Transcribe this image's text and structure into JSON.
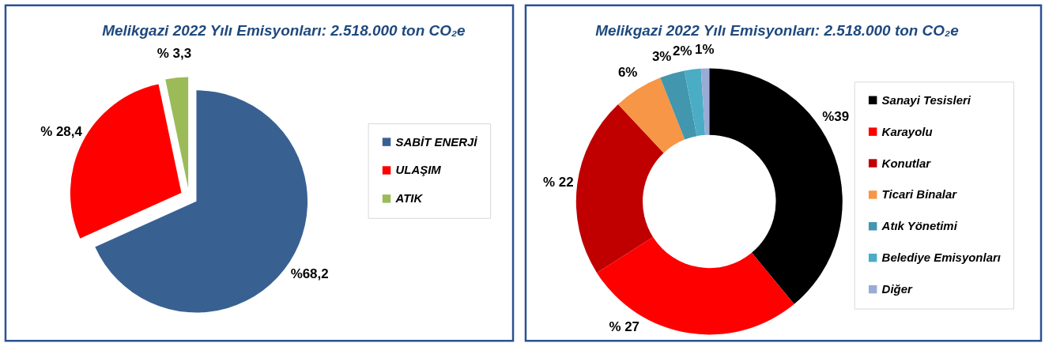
{
  "chart_data": [
    {
      "type": "pie",
      "title": "Melikgazi 2022 Yılı Emisyonları: 2.518.000 ton CO₂e",
      "categories": [
        "SABİT ENERJİ",
        "ULAŞIM",
        "ATIK"
      ],
      "values": [
        68.2,
        28.4,
        3.3
      ],
      "colors": [
        "#386192",
        "#ff0000",
        "#9bbb59"
      ],
      "value_labels": [
        "%68,2",
        "% 28,4",
        "% 3,3"
      ],
      "legend": "right"
    },
    {
      "type": "donut",
      "title": "Melikgazi 2022 Yılı Emisyonları: 2.518.000 ton CO₂e",
      "categories": [
        "Sanayi Tesisleri",
        "Karayolu",
        "Konutlar",
        "Ticari Binalar",
        "Atık Yönetimi",
        "Belediye Emisyonları",
        "Diğer"
      ],
      "values": [
        39,
        27,
        22,
        6,
        3,
        2,
        1
      ],
      "colors": [
        "#000000",
        "#ff0000",
        "#c00000",
        "#f79646",
        "#4296ad",
        "#4bacc6",
        "#9aabd6"
      ],
      "value_labels": [
        "%39",
        "% 27",
        "% 22",
        "6%",
        "3%",
        "2%",
        "1%"
      ],
      "legend": "right"
    }
  ]
}
